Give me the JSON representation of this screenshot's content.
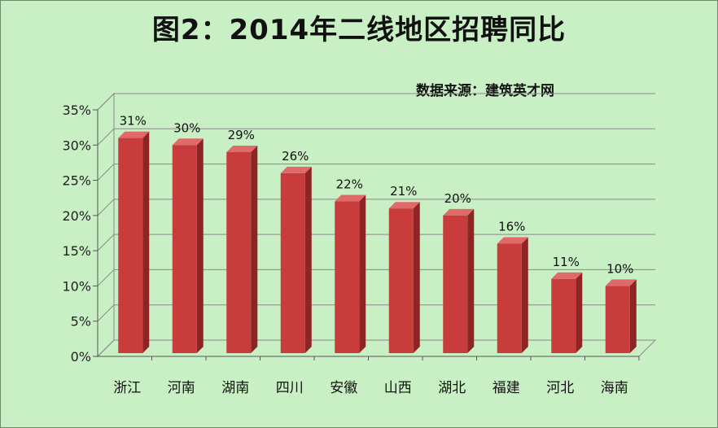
{
  "chart_data": {
    "type": "bar",
    "title": "图2：2014年二线地区招聘同比",
    "source": "数据来源：建筑英才网",
    "categories": [
      "浙江",
      "河南",
      "湖南",
      "四川",
      "安徽",
      "山西",
      "湖北",
      "福建",
      "河北",
      "海南"
    ],
    "values": [
      31,
      30,
      29,
      26,
      22,
      21,
      20,
      16,
      11,
      10
    ],
    "data_labels": [
      "31%",
      "30%",
      "29%",
      "26%",
      "22%",
      "21%",
      "20%",
      "16%",
      "11%",
      "10%"
    ],
    "y_ticks": [
      "0%",
      "5%",
      "10%",
      "15%",
      "20%",
      "25%",
      "30%",
      "35%"
    ],
    "ylim": [
      0,
      35
    ],
    "grid": true,
    "style": "3d-column",
    "colors": {
      "background": "#c9efc4",
      "bar_front": "#c83c3c",
      "bar_side": "#8e2424",
      "bar_top": "#e06a6a",
      "grid": "#8a8a8a"
    }
  }
}
